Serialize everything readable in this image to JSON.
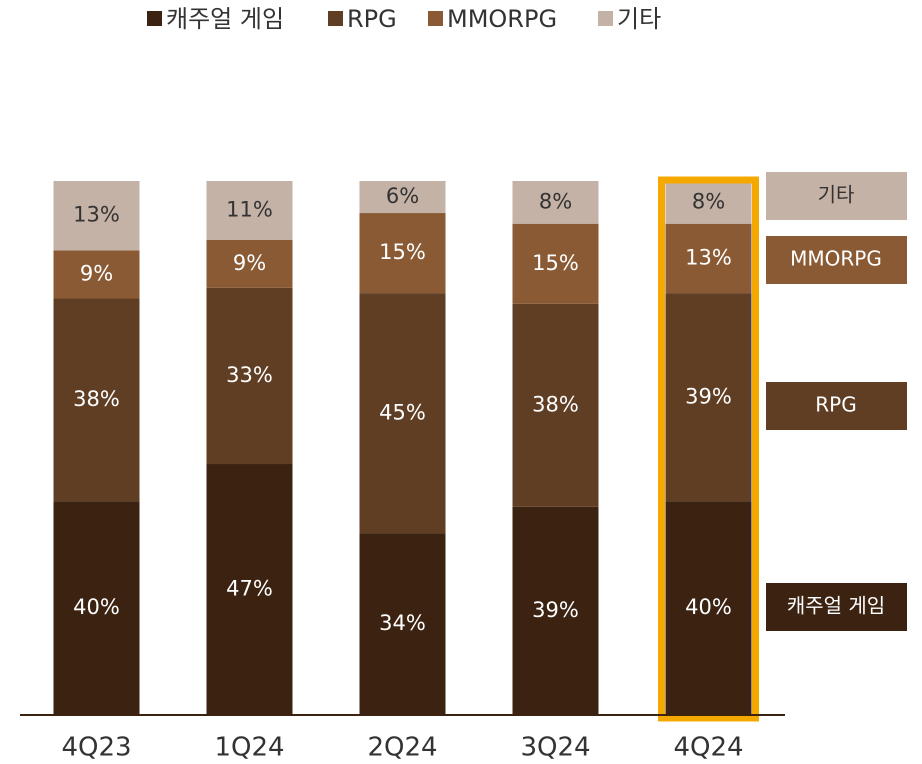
{
  "chart_data": {
    "type": "bar",
    "stacked": true,
    "categories": [
      "4Q23",
      "1Q24",
      "2Q24",
      "3Q24",
      "4Q24"
    ],
    "series": [
      {
        "name": "캐주얼 게임",
        "color": "#3b2211",
        "values": [
          40,
          47,
          34,
          39,
          40
        ],
        "value_labels": [
          "40%",
          "47%",
          "34%",
          "39%",
          "40%"
        ]
      },
      {
        "name": "RPG",
        "color": "#5f3e24",
        "values": [
          38,
          33,
          45,
          38,
          39
        ],
        "value_labels": [
          "38%",
          "33%",
          "45%",
          "38%",
          "39%"
        ]
      },
      {
        "name": "MMORPG",
        "color": "#8a5a34",
        "values": [
          9,
          9,
          15,
          15,
          13
        ],
        "value_labels": [
          "9%",
          "9%",
          "15%",
          "15%",
          "13%"
        ]
      },
      {
        "name": "기타",
        "color": "#c4b2a6",
        "values": [
          13,
          11,
          6,
          8,
          8
        ],
        "value_labels": [
          "13%",
          "11%",
          "6%",
          "8%",
          "8%"
        ]
      }
    ],
    "ylim": [
      0,
      100
    ],
    "legend": "top",
    "highlight": {
      "category_index": 4,
      "color": "#f5a800"
    }
  }
}
